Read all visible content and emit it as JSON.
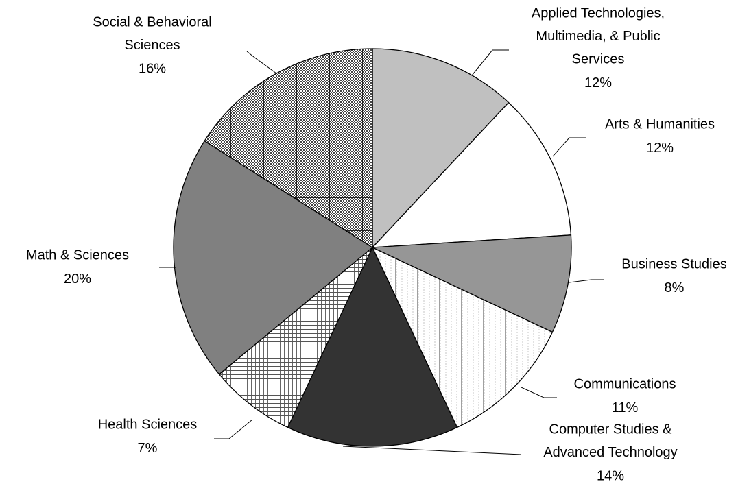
{
  "chart_data": {
    "type": "pie",
    "categories": [
      [
        "Applied Technologies,",
        "Multimedia, & Public",
        "Services"
      ],
      [
        "Arts & Humanities"
      ],
      [
        "Business Studies"
      ],
      [
        "Communications"
      ],
      [
        "Computer Studies &",
        "Advanced Technology"
      ],
      [
        "Health Sciences"
      ],
      [
        "Math & Sciences"
      ],
      [
        "Social & Behavioral",
        "Sciences"
      ]
    ],
    "values": [
      12,
      12,
      8,
      11,
      14,
      7,
      20,
      16
    ],
    "value_labels": [
      "12%",
      "12%",
      "8%",
      "11%",
      "14%",
      "7%",
      "20%",
      "16%"
    ],
    "colors": [
      "#c0c0c0",
      "#ffffff",
      "#969696",
      "#ffffff",
      "#333333",
      "#ffffff",
      "#808080",
      "#ffffff"
    ],
    "patterns": [
      "solid",
      "solid",
      "solid",
      "vertical",
      "solid",
      "grid",
      "solid",
      "checker"
    ]
  }
}
